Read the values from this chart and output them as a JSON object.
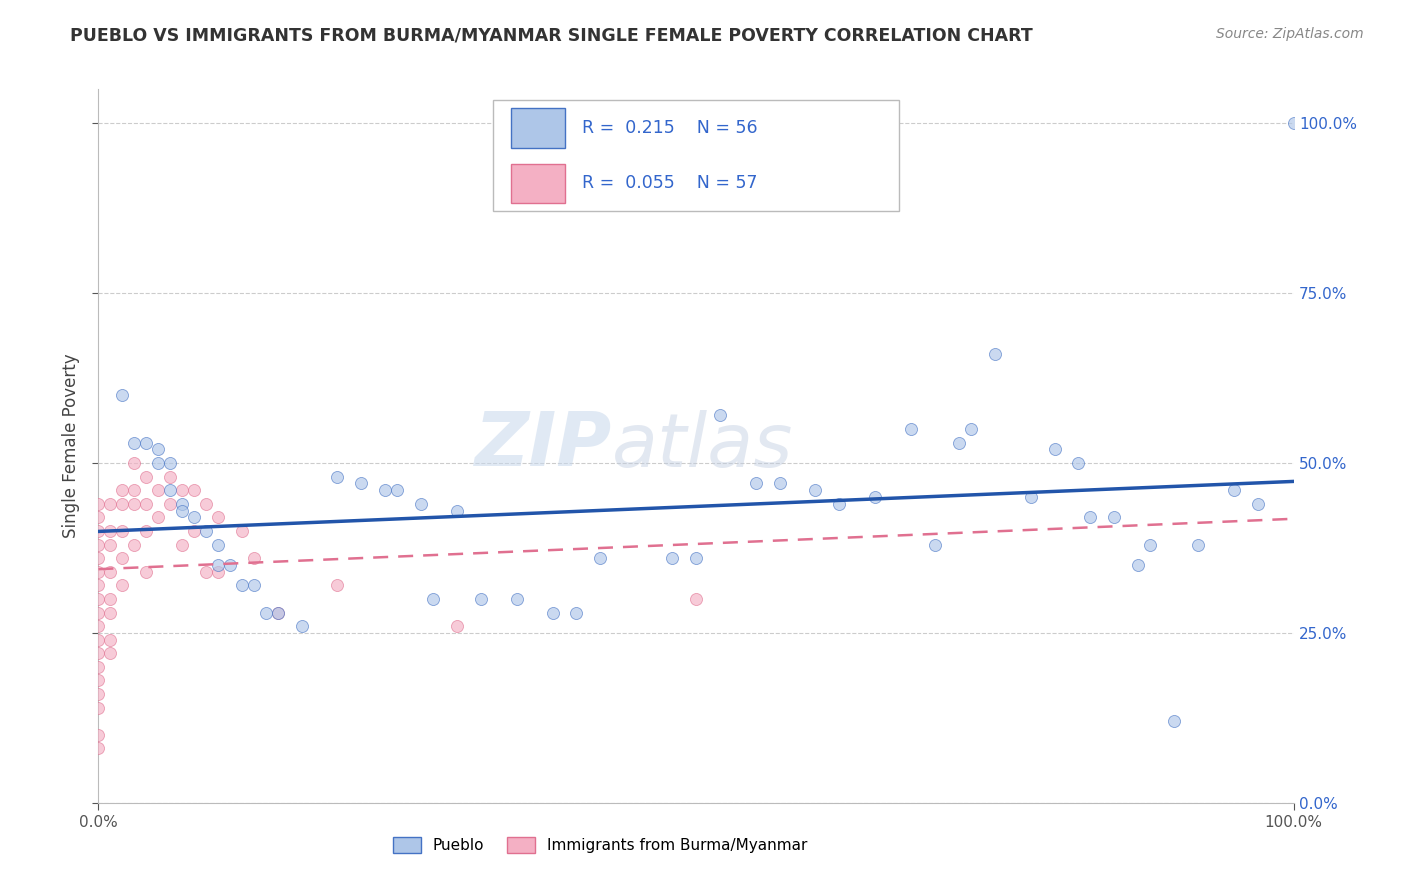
{
  "title": "PUEBLO VS IMMIGRANTS FROM BURMA/MYANMAR SINGLE FEMALE POVERTY CORRELATION CHART",
  "source": "Source: ZipAtlas.com",
  "ylabel": "Single Female Poverty",
  "watermark": "ZIPatlas",
  "xlim": [
    0.0,
    1.0
  ],
  "ylim": [
    0.0,
    1.05
  ],
  "x_tick_labels": [
    "0.0%",
    "100.0%"
  ],
  "y_tick_labels": [
    "0.0%",
    "25.0%",
    "50.0%",
    "75.0%",
    "100.0%"
  ],
  "y_tick_values": [
    0.0,
    0.25,
    0.5,
    0.75,
    1.0
  ],
  "pueblo_R": 0.215,
  "pueblo_N": 56,
  "burma_R": 0.055,
  "burma_N": 57,
  "legend_label1": "Pueblo",
  "legend_label2": "Immigrants from Burma/Myanmar",
  "pueblo_scatter": [
    [
      0.02,
      0.6
    ],
    [
      0.03,
      0.53
    ],
    [
      0.04,
      0.53
    ],
    [
      0.05,
      0.52
    ],
    [
      0.05,
      0.5
    ],
    [
      0.06,
      0.5
    ],
    [
      0.06,
      0.46
    ],
    [
      0.07,
      0.44
    ],
    [
      0.07,
      0.43
    ],
    [
      0.08,
      0.42
    ],
    [
      0.09,
      0.4
    ],
    [
      0.1,
      0.38
    ],
    [
      0.1,
      0.35
    ],
    [
      0.11,
      0.35
    ],
    [
      0.12,
      0.32
    ],
    [
      0.13,
      0.32
    ],
    [
      0.14,
      0.28
    ],
    [
      0.15,
      0.28
    ],
    [
      0.17,
      0.26
    ],
    [
      0.2,
      0.48
    ],
    [
      0.22,
      0.47
    ],
    [
      0.24,
      0.46
    ],
    [
      0.25,
      0.46
    ],
    [
      0.27,
      0.44
    ],
    [
      0.28,
      0.3
    ],
    [
      0.3,
      0.43
    ],
    [
      0.32,
      0.3
    ],
    [
      0.35,
      0.3
    ],
    [
      0.38,
      0.28
    ],
    [
      0.4,
      0.28
    ],
    [
      0.42,
      0.36
    ],
    [
      0.48,
      0.36
    ],
    [
      0.5,
      0.36
    ],
    [
      0.52,
      0.57
    ],
    [
      0.55,
      0.47
    ],
    [
      0.57,
      0.47
    ],
    [
      0.6,
      0.46
    ],
    [
      0.62,
      0.44
    ],
    [
      0.65,
      0.45
    ],
    [
      0.68,
      0.55
    ],
    [
      0.7,
      0.38
    ],
    [
      0.72,
      0.53
    ],
    [
      0.73,
      0.55
    ],
    [
      0.75,
      0.66
    ],
    [
      0.78,
      0.45
    ],
    [
      0.8,
      0.52
    ],
    [
      0.82,
      0.5
    ],
    [
      0.83,
      0.42
    ],
    [
      0.85,
      0.42
    ],
    [
      0.87,
      0.35
    ],
    [
      0.88,
      0.38
    ],
    [
      0.9,
      0.12
    ],
    [
      0.92,
      0.38
    ],
    [
      0.95,
      0.46
    ],
    [
      0.97,
      0.44
    ],
    [
      1.0,
      1.0
    ]
  ],
  "burma_scatter": [
    [
      0.0,
      0.44
    ],
    [
      0.0,
      0.42
    ],
    [
      0.0,
      0.4
    ],
    [
      0.0,
      0.38
    ],
    [
      0.0,
      0.36
    ],
    [
      0.0,
      0.34
    ],
    [
      0.0,
      0.32
    ],
    [
      0.0,
      0.3
    ],
    [
      0.0,
      0.28
    ],
    [
      0.0,
      0.26
    ],
    [
      0.0,
      0.24
    ],
    [
      0.0,
      0.22
    ],
    [
      0.0,
      0.2
    ],
    [
      0.0,
      0.18
    ],
    [
      0.0,
      0.16
    ],
    [
      0.0,
      0.14
    ],
    [
      0.0,
      0.1
    ],
    [
      0.0,
      0.08
    ],
    [
      0.01,
      0.44
    ],
    [
      0.01,
      0.4
    ],
    [
      0.01,
      0.38
    ],
    [
      0.01,
      0.34
    ],
    [
      0.01,
      0.3
    ],
    [
      0.01,
      0.28
    ],
    [
      0.01,
      0.24
    ],
    [
      0.01,
      0.22
    ],
    [
      0.02,
      0.46
    ],
    [
      0.02,
      0.44
    ],
    [
      0.02,
      0.4
    ],
    [
      0.02,
      0.36
    ],
    [
      0.02,
      0.32
    ],
    [
      0.03,
      0.5
    ],
    [
      0.03,
      0.46
    ],
    [
      0.03,
      0.44
    ],
    [
      0.03,
      0.38
    ],
    [
      0.04,
      0.48
    ],
    [
      0.04,
      0.44
    ],
    [
      0.04,
      0.4
    ],
    [
      0.04,
      0.34
    ],
    [
      0.05,
      0.46
    ],
    [
      0.05,
      0.42
    ],
    [
      0.06,
      0.48
    ],
    [
      0.06,
      0.44
    ],
    [
      0.07,
      0.46
    ],
    [
      0.07,
      0.38
    ],
    [
      0.08,
      0.46
    ],
    [
      0.08,
      0.4
    ],
    [
      0.09,
      0.44
    ],
    [
      0.09,
      0.34
    ],
    [
      0.1,
      0.42
    ],
    [
      0.1,
      0.34
    ],
    [
      0.12,
      0.4
    ],
    [
      0.13,
      0.36
    ],
    [
      0.15,
      0.28
    ],
    [
      0.2,
      0.32
    ],
    [
      0.3,
      0.26
    ],
    [
      0.5,
      0.3
    ]
  ],
  "bg_color": "#ffffff",
  "grid_color": "#cccccc",
  "pueblo_dot_color": "#aec6e8",
  "pueblo_dot_edge": "#4472c4",
  "burma_dot_color": "#f4b0c4",
  "burma_dot_edge": "#e07090",
  "pueblo_line_color": "#2255aa",
  "burma_line_color": "#e07090",
  "dot_size": 75,
  "dot_alpha": 0.65
}
